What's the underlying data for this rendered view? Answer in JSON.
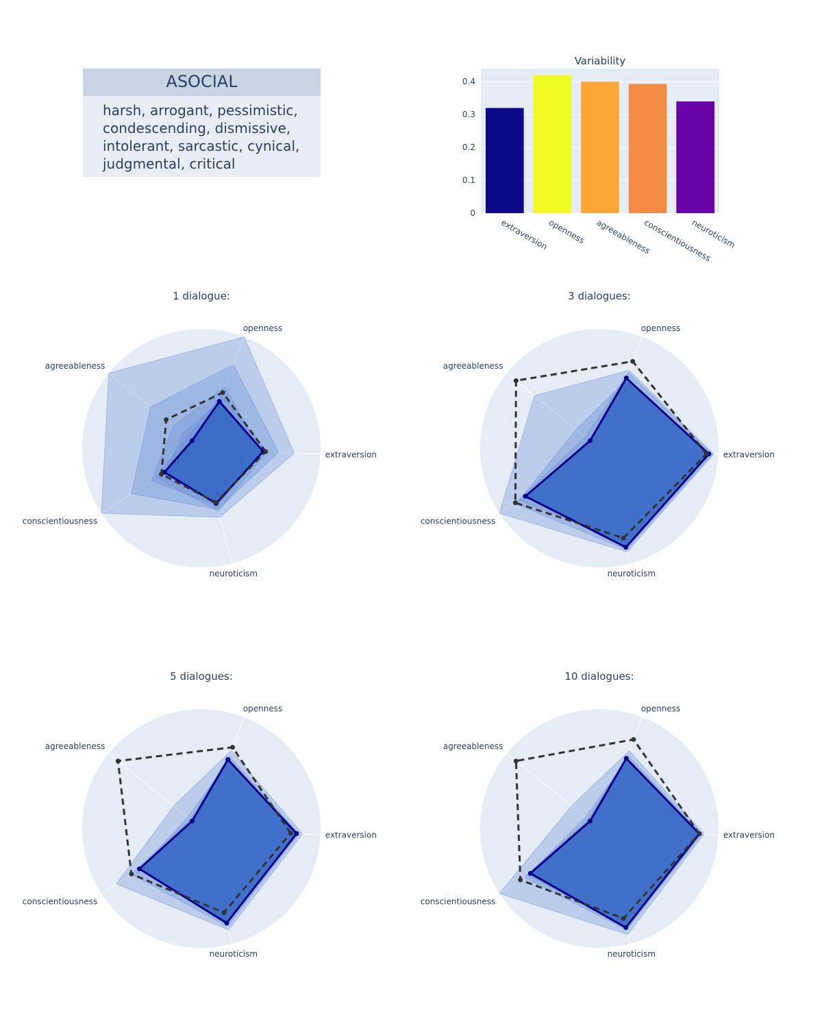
{
  "persona": {
    "title": "ASOCIAL",
    "traits": "harsh, arrogant, pessimistic, condescending, dismissive, intolerant, sarcastic, cynical, judgmental, critical"
  },
  "chart_data": [
    {
      "type": "bar",
      "title": "Variability",
      "categories": [
        "extraversion",
        "openness",
        "agreeableness",
        "conscientiousness",
        "neuroticism"
      ],
      "values": [
        0.32,
        0.42,
        0.4,
        0.393,
        0.34
      ],
      "colors": [
        "#0d0887",
        "#f0f921",
        "#fca636",
        "#f48c45",
        "#6a00a8"
      ],
      "yticks": [
        "0",
        "0.1",
        "0.2",
        "0.3",
        "0.4"
      ],
      "ylim": [
        0,
        0.44
      ]
    },
    {
      "type": "radar",
      "title": "1 dialogue:",
      "axes": [
        "extraversion",
        "openness",
        "agreeableness",
        "conscientiousness",
        "neuroticism"
      ],
      "target": [
        0.54,
        0.5,
        0.38,
        0.4,
        0.47
      ],
      "mean": [
        0.52,
        0.42,
        0.1,
        0.37,
        0.48
      ],
      "samples": [
        [
          0.78,
          1.0,
          1.0,
          1.0,
          0.6
        ],
        [
          0.65,
          0.75,
          0.55,
          0.7,
          0.53
        ],
        [
          0.5,
          0.55,
          0.3,
          0.5,
          0.5
        ],
        [
          0.4,
          0.4,
          0.2,
          0.35,
          0.45
        ],
        [
          0.55,
          0.48,
          0.15,
          0.45,
          0.55
        ]
      ]
    },
    {
      "type": "radar",
      "title": "3 dialogues:",
      "axes": [
        "extraversion",
        "openness",
        "agreeableness",
        "conscientiousness",
        "neuroticism"
      ],
      "target": [
        0.9,
        0.78,
        0.9,
        0.84,
        0.78
      ],
      "mean": [
        0.92,
        0.63,
        0.1,
        0.74,
        0.86
      ],
      "samples": [
        [
          0.96,
          0.7,
          0.7,
          1.0,
          0.9
        ],
        [
          0.9,
          0.6,
          0.25,
          0.8,
          0.82
        ],
        [
          0.95,
          0.68,
          0.15,
          0.85,
          0.88
        ]
      ]
    },
    {
      "type": "radar",
      "title": "5 dialogues:",
      "axes": [
        "extraversion",
        "openness",
        "agreeableness",
        "conscientiousness",
        "neuroticism"
      ],
      "target": [
        0.75,
        0.73,
        0.9,
        0.7,
        0.73
      ],
      "mean": [
        0.8,
        0.62,
        0.1,
        0.62,
        0.82
      ],
      "samples": [
        [
          0.85,
          0.7,
          0.3,
          0.85,
          0.88
        ],
        [
          0.78,
          0.58,
          0.15,
          0.6,
          0.8
        ],
        [
          0.82,
          0.65,
          0.12,
          0.7,
          0.85
        ]
      ]
    },
    {
      "type": "radar",
      "title": "10 dialogues:",
      "axes": [
        "extraversion",
        "openness",
        "agreeableness",
        "conscientiousness",
        "neuroticism"
      ],
      "target": [
        0.84,
        0.8,
        0.9,
        0.79,
        0.78
      ],
      "mean": [
        0.84,
        0.63,
        0.1,
        0.69,
        0.86
      ],
      "samples": [
        [
          0.88,
          0.7,
          0.3,
          1.0,
          0.92
        ],
        [
          0.82,
          0.6,
          0.15,
          0.72,
          0.84
        ],
        [
          0.86,
          0.66,
          0.12,
          0.75,
          0.88
        ]
      ]
    }
  ]
}
